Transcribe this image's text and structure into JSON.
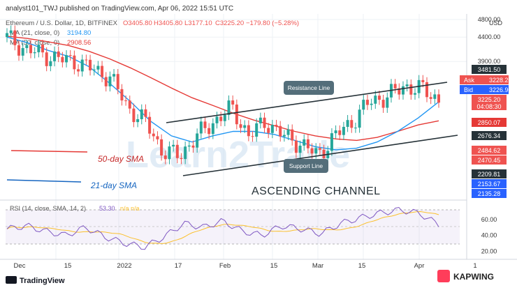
{
  "header": {
    "publisher": "analyst101_TWJ published on TradingView.com, Apr 06, 2022 15:51 UTC",
    "symbol_line": "Ethereum / U.S. Dollar, 1D, BITFINEX",
    "ohlc": {
      "o": "O3405.80",
      "h": "H3405.80",
      "l": "L3177.10",
      "c": "C3225.20",
      "chg": "−179.80 (−5.28%)"
    },
    "ma1": {
      "label": "MA (21, close, 0)",
      "value": "3194.80"
    },
    "ma2": {
      "label": "MA (50, close, 0)",
      "value": "2908.56"
    },
    "currency": "USD"
  },
  "annotations": {
    "resistance": "Resistance Line",
    "support": "Support Line",
    "sma50": "50-day SMA",
    "sma21": "21-day SMA",
    "pattern": "ASCENDING CHANNEL",
    "watermark": "Learn2Trade"
  },
  "price_labels": {
    "p3481": "3481.50",
    "ask_label": "Ask",
    "ask_value": "3228.20",
    "bid_label": "Bid",
    "bid_value": "3226.90",
    "last_value": "3225.20",
    "countdown": "04:08:30",
    "p2850": "2850.07",
    "p2676": "2676.34",
    "p2484": "2484.62",
    "p2470": "2470.45",
    "p2209": "2209.81",
    "p2153": "2153.67",
    "p2135": "2135.28"
  },
  "rsi": {
    "label": "RSI (14, close, SMA, 14, 2)",
    "value": "53.30",
    "na": "n/a  n/a"
  },
  "footer": {
    "brand": "TradingView",
    "kapwing": "KAPWING"
  },
  "colors": {
    "sma21": "#2196f3",
    "sma50": "#e53935",
    "bull": "#26a69a",
    "bear": "#ef5350",
    "rsi": "#7e57c2",
    "rsi_ma": "#fbc02d",
    "channel": "#263238"
  },
  "chart_data": [
    {
      "type": "line",
      "title": "Ethereum / U.S. Dollar, 1D, BITFINEX",
      "ylabel": "USD",
      "x_ticks": [
        "Dec",
        "15",
        "2022",
        "17",
        "Feb",
        "15",
        "Mar",
        "15",
        "Apr",
        "1"
      ],
      "y_ticks": [
        3900,
        4400,
        4800
      ],
      "ylim": [
        2000,
        4900
      ],
      "scale": "log",
      "series": [
        {
          "name": "MA (21, close, 0)",
          "values": [
            4400,
            4280,
            4120,
            4000,
            3800,
            3500,
            3200,
            2900,
            2700,
            2620,
            2700,
            2760,
            2760,
            2720,
            2640,
            2560,
            2520,
            2540,
            2620,
            2760,
            2950,
            3194.8
          ]
        },
        {
          "name": "MA (50, close, 0)",
          "values": [
            4420,
            4370,
            4300,
            4220,
            4100,
            3950,
            3780,
            3600,
            3420,
            3260,
            3140,
            3020,
            2920,
            2840,
            2760,
            2700,
            2660,
            2640,
            2680,
            2760,
            2850,
            2908.56
          ]
        }
      ],
      "candles_close": [
        4400,
        4150,
        4050,
        3950,
        3900,
        3750,
        3600,
        3100,
        2900,
        2500,
        2450,
        2700,
        2900,
        3100,
        2700,
        2900,
        2700,
        2600,
        2450,
        2700,
        2900,
        3200,
        3280,
        3450,
        3405.8,
        3225.2
      ]
    },
    {
      "type": "line",
      "title": "RSI (14, close, SMA, 14, 2)",
      "y_ticks": [
        20,
        40,
        60
      ],
      "ylim": [
        15,
        80
      ],
      "series": [
        {
          "name": "RSI",
          "values": [
            48,
            52,
            45,
            40,
            50,
            38,
            30,
            25,
            38,
            55,
            50,
            58,
            45,
            40,
            52,
            48,
            42,
            55,
            62,
            68,
            72,
            68,
            53.3
          ]
        }
      ]
    }
  ]
}
